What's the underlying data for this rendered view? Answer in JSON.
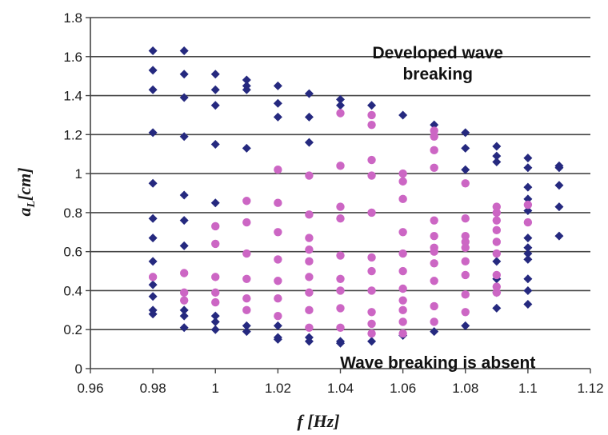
{
  "chart_data": {
    "type": "scatter",
    "xlabel": "f [Hz]",
    "ylabel_main": "a",
    "ylabel_sub": "L",
    "ylabel_rest": "[cm]",
    "xlim": [
      0.96,
      1.12
    ],
    "ylim": [
      0,
      1.8
    ],
    "x_ticks": [
      "0.96",
      "0.98",
      "1",
      "1.02",
      "1.04",
      "1.06",
      "1.08",
      "1.1",
      "1.12"
    ],
    "y_ticks": [
      "0",
      "0.2",
      "0.4",
      "0.6",
      "0.8",
      "1",
      "1.2",
      "1.4",
      "1.6",
      "1.8"
    ],
    "grid": "horizontal",
    "annotations": [
      {
        "text": "Developed wave",
        "x": 1.075,
        "y": 1.62
      },
      {
        "text": "breaking",
        "x": 1.075,
        "y": 1.51
      },
      {
        "text": "Wave breaking is absent",
        "x": 1.075,
        "y": 0.03
      }
    ],
    "series": [
      {
        "marker": "diamond",
        "color": "#25297f",
        "points": [
          [
            0.98,
            1.63
          ],
          [
            0.98,
            1.53
          ],
          [
            0.98,
            1.43
          ],
          [
            0.98,
            1.21
          ],
          [
            0.98,
            0.95
          ],
          [
            0.98,
            0.77
          ],
          [
            0.98,
            0.67
          ],
          [
            0.98,
            0.55
          ],
          [
            0.98,
            0.43
          ],
          [
            0.98,
            0.37
          ],
          [
            0.98,
            0.3
          ],
          [
            0.98,
            0.28
          ],
          [
            0.99,
            1.63
          ],
          [
            0.99,
            1.51
          ],
          [
            0.99,
            1.39
          ],
          [
            0.99,
            1.19
          ],
          [
            0.99,
            0.89
          ],
          [
            0.99,
            0.76
          ],
          [
            0.99,
            0.63
          ],
          [
            0.99,
            0.3
          ],
          [
            0.99,
            0.27
          ],
          [
            0.99,
            0.21
          ],
          [
            1.0,
            1.51
          ],
          [
            1.0,
            1.43
          ],
          [
            1.0,
            1.35
          ],
          [
            1.0,
            1.15
          ],
          [
            1.0,
            0.85
          ],
          [
            1.0,
            0.27
          ],
          [
            1.0,
            0.24
          ],
          [
            1.0,
            0.2
          ],
          [
            1.01,
            1.48
          ],
          [
            1.01,
            1.45
          ],
          [
            1.01,
            1.43
          ],
          [
            1.01,
            1.13
          ],
          [
            1.01,
            0.22
          ],
          [
            1.01,
            0.19
          ],
          [
            1.02,
            1.45
          ],
          [
            1.02,
            1.36
          ],
          [
            1.02,
            1.29
          ],
          [
            1.02,
            0.22
          ],
          [
            1.02,
            0.16
          ],
          [
            1.02,
            0.15
          ],
          [
            1.03,
            1.41
          ],
          [
            1.03,
            1.29
          ],
          [
            1.03,
            1.16
          ],
          [
            1.03,
            0.16
          ],
          [
            1.03,
            0.14
          ],
          [
            1.04,
            1.38
          ],
          [
            1.04,
            1.35
          ],
          [
            1.04,
            0.14
          ],
          [
            1.04,
            0.13
          ],
          [
            1.05,
            1.35
          ],
          [
            1.05,
            0.14
          ],
          [
            1.06,
            1.3
          ],
          [
            1.06,
            0.17
          ],
          [
            1.07,
            1.25
          ],
          [
            1.07,
            0.19
          ],
          [
            1.08,
            1.21
          ],
          [
            1.08,
            1.13
          ],
          [
            1.08,
            1.02
          ],
          [
            1.08,
            0.22
          ],
          [
            1.09,
            1.14
          ],
          [
            1.09,
            1.09
          ],
          [
            1.09,
            1.06
          ],
          [
            1.09,
            0.55
          ],
          [
            1.09,
            0.46
          ],
          [
            1.09,
            0.39
          ],
          [
            1.09,
            0.31
          ],
          [
            1.1,
            1.08
          ],
          [
            1.1,
            1.03
          ],
          [
            1.1,
            0.93
          ],
          [
            1.1,
            0.87
          ],
          [
            1.1,
            0.81
          ],
          [
            1.1,
            0.67
          ],
          [
            1.1,
            0.62
          ],
          [
            1.1,
            0.59
          ],
          [
            1.1,
            0.56
          ],
          [
            1.1,
            0.46
          ],
          [
            1.1,
            0.4
          ],
          [
            1.1,
            0.33
          ],
          [
            1.11,
            1.04
          ],
          [
            1.11,
            1.03
          ],
          [
            1.11,
            0.94
          ],
          [
            1.11,
            0.83
          ],
          [
            1.11,
            0.68
          ]
        ]
      },
      {
        "marker": "circle",
        "color": "#cc66c4",
        "points": [
          [
            0.98,
            0.47
          ],
          [
            0.99,
            0.49
          ],
          [
            0.99,
            0.39
          ],
          [
            0.99,
            0.35
          ],
          [
            1.0,
            0.73
          ],
          [
            1.0,
            0.64
          ],
          [
            1.0,
            0.47
          ],
          [
            1.0,
            0.39
          ],
          [
            1.0,
            0.34
          ],
          [
            1.01,
            0.86
          ],
          [
            1.01,
            0.75
          ],
          [
            1.01,
            0.59
          ],
          [
            1.01,
            0.46
          ],
          [
            1.01,
            0.36
          ],
          [
            1.01,
            0.3
          ],
          [
            1.02,
            1.02
          ],
          [
            1.02,
            0.85
          ],
          [
            1.02,
            0.7
          ],
          [
            1.02,
            0.56
          ],
          [
            1.02,
            0.45
          ],
          [
            1.02,
            0.36
          ],
          [
            1.02,
            0.27
          ],
          [
            1.03,
            0.99
          ],
          [
            1.03,
            0.79
          ],
          [
            1.03,
            0.67
          ],
          [
            1.03,
            0.61
          ],
          [
            1.03,
            0.55
          ],
          [
            1.03,
            0.47
          ],
          [
            1.03,
            0.39
          ],
          [
            1.03,
            0.3
          ],
          [
            1.03,
            0.21
          ],
          [
            1.04,
            1.31
          ],
          [
            1.04,
            1.04
          ],
          [
            1.04,
            0.83
          ],
          [
            1.04,
            0.77
          ],
          [
            1.04,
            0.58
          ],
          [
            1.04,
            0.46
          ],
          [
            1.04,
            0.4
          ],
          [
            1.04,
            0.31
          ],
          [
            1.04,
            0.21
          ],
          [
            1.05,
            1.3
          ],
          [
            1.05,
            1.25
          ],
          [
            1.05,
            1.07
          ],
          [
            1.05,
            0.99
          ],
          [
            1.05,
            0.8
          ],
          [
            1.05,
            0.57
          ],
          [
            1.05,
            0.5
          ],
          [
            1.05,
            0.4
          ],
          [
            1.05,
            0.29
          ],
          [
            1.05,
            0.23
          ],
          [
            1.05,
            0.18
          ],
          [
            1.06,
            1.0
          ],
          [
            1.06,
            0.96
          ],
          [
            1.06,
            0.87
          ],
          [
            1.06,
            0.7
          ],
          [
            1.06,
            0.59
          ],
          [
            1.06,
            0.5
          ],
          [
            1.06,
            0.41
          ],
          [
            1.06,
            0.35
          ],
          [
            1.06,
            0.3
          ],
          [
            1.06,
            0.24
          ],
          [
            1.06,
            0.18
          ],
          [
            1.07,
            1.22
          ],
          [
            1.07,
            1.19
          ],
          [
            1.07,
            1.12
          ],
          [
            1.07,
            1.03
          ],
          [
            1.07,
            0.76
          ],
          [
            1.07,
            0.68
          ],
          [
            1.07,
            0.62
          ],
          [
            1.07,
            0.6
          ],
          [
            1.07,
            0.54
          ],
          [
            1.07,
            0.45
          ],
          [
            1.07,
            0.32
          ],
          [
            1.07,
            0.24
          ],
          [
            1.08,
            0.95
          ],
          [
            1.08,
            0.77
          ],
          [
            1.08,
            0.68
          ],
          [
            1.08,
            0.65
          ],
          [
            1.08,
            0.62
          ],
          [
            1.08,
            0.55
          ],
          [
            1.08,
            0.48
          ],
          [
            1.08,
            0.38
          ],
          [
            1.08,
            0.29
          ],
          [
            1.09,
            0.83
          ],
          [
            1.09,
            0.8
          ],
          [
            1.09,
            0.76
          ],
          [
            1.09,
            0.71
          ],
          [
            1.09,
            0.65
          ],
          [
            1.09,
            0.59
          ],
          [
            1.09,
            0.48
          ],
          [
            1.09,
            0.42
          ],
          [
            1.09,
            0.39
          ],
          [
            1.1,
            0.84
          ],
          [
            1.1,
            0.75
          ]
        ]
      }
    ]
  }
}
